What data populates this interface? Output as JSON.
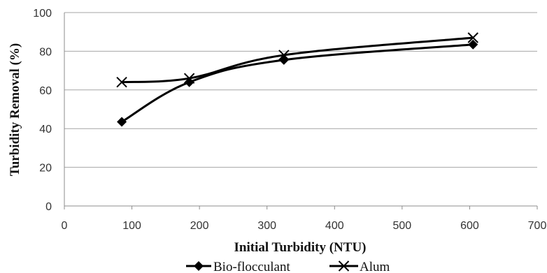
{
  "chart_data": {
    "type": "line",
    "xlabel": "Initial Turbidity (NTU)",
    "ylabel": "Turbidity Removal (%)",
    "xlim": [
      0,
      700
    ],
    "ylim": [
      0,
      100
    ],
    "x_ticks": [
      0,
      100,
      200,
      300,
      400,
      500,
      600,
      700
    ],
    "y_ticks": [
      0,
      20,
      40,
      60,
      80,
      100
    ],
    "x_tick_labels": [
      "0",
      "100",
      "200",
      "300",
      "400",
      "500",
      "600",
      "700"
    ],
    "y_tick_labels": [
      "0",
      "20",
      "40",
      "60",
      "80",
      "100"
    ],
    "grid": "horizontal",
    "legend_position": "bottom",
    "smooth": true,
    "series": [
      {
        "name": "Bio-flocculant",
        "marker": "diamond",
        "color": "#000000",
        "points": [
          [
            85,
            43.5
          ],
          [
            185,
            64
          ],
          [
            325,
            75.5
          ],
          [
            605,
            83.5
          ]
        ]
      },
      {
        "name": "Alum",
        "marker": "x",
        "color": "#000000",
        "points": [
          [
            85,
            64
          ],
          [
            185,
            66
          ],
          [
            325,
            78
          ],
          [
            605,
            87
          ]
        ]
      }
    ]
  }
}
